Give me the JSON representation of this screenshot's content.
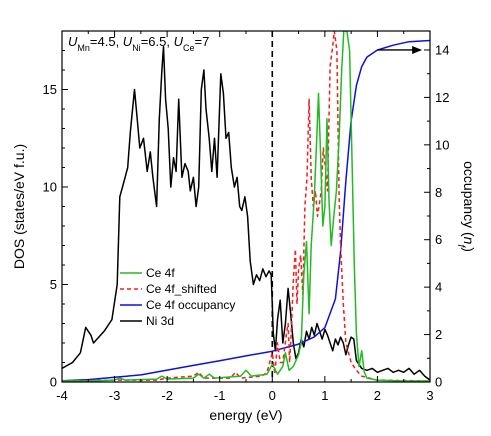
{
  "chart_data": {
    "type": "line",
    "annotation": {
      "parts": [
        {
          "text": "U",
          "style": "italic"
        },
        {
          "text": "Mn",
          "style": "sub"
        },
        {
          "text": "=4.5, ",
          "style": "normal"
        },
        {
          "text": "U",
          "style": "italic"
        },
        {
          "text": "Ni",
          "style": "sub"
        },
        {
          "text": "=6.5, ",
          "style": "normal"
        },
        {
          "text": "U",
          "style": "italic"
        },
        {
          "text": "Ce",
          "style": "sub"
        },
        {
          "text": "=7",
          "style": "normal"
        }
      ]
    },
    "xlabel": "energy (eV)",
    "ylabel": "DOS (states/eV f.u.)",
    "y2label": {
      "parts": [
        {
          "text": "occupancy (",
          "style": "normal"
        },
        {
          "text": "n",
          "style": "italic"
        },
        {
          "text": "f",
          "style": "italic-sub"
        },
        {
          "text": ")",
          "style": "normal"
        }
      ]
    },
    "xlim": [
      -4,
      3
    ],
    "ylim": [
      0,
      18
    ],
    "y2lim": [
      0,
      14.8
    ],
    "xticks": [
      -4,
      -3,
      -2,
      -1,
      0,
      1,
      2,
      3
    ],
    "yticks": [
      0,
      5,
      10,
      15
    ],
    "y2ticks": [
      0,
      2,
      4,
      6,
      8,
      10,
      12,
      14
    ],
    "fermi_level": 0,
    "arrow": {
      "from": [
        2.0,
        14.0
      ],
      "to": [
        2.85,
        14.0
      ],
      "axis": "y2"
    },
    "legend": {
      "position": "lower-left-center"
    },
    "colors": {
      "ce4f": "#22bb22",
      "shifted": "#ee2020",
      "occupancy": "#1010dd",
      "ni3d": "#000000"
    },
    "series": [
      {
        "name": "Ce 4f",
        "axis": "y",
        "color": "#22bb22",
        "style": "solid",
        "points": [
          [
            -4,
            0.05
          ],
          [
            -3.5,
            0.05
          ],
          [
            -3,
            0.1
          ],
          [
            -2.9,
            0.2
          ],
          [
            -2.8,
            0.1
          ],
          [
            -2.2,
            0.15
          ],
          [
            -2.1,
            0.3
          ],
          [
            -2.0,
            0.15
          ],
          [
            -1.5,
            0.2
          ],
          [
            -1.4,
            0.4
          ],
          [
            -1.3,
            0.2
          ],
          [
            -1.2,
            0.4
          ],
          [
            -1.1,
            0.2
          ],
          [
            -0.6,
            0.3
          ],
          [
            -0.5,
            0.6
          ],
          [
            -0.4,
            0.3
          ],
          [
            -0.1,
            0.4
          ],
          [
            0.0,
            0.9
          ],
          [
            0.1,
            0.4
          ],
          [
            0.2,
            0.8
          ],
          [
            0.25,
            1.5
          ],
          [
            0.32,
            0.6
          ],
          [
            0.4,
            0.8
          ],
          [
            0.5,
            1.4
          ],
          [
            0.55,
            2.0
          ],
          [
            0.6,
            5.5
          ],
          [
            0.65,
            7.2
          ],
          [
            0.7,
            3.5
          ],
          [
            0.74,
            7.0
          ],
          [
            0.8,
            9.5
          ],
          [
            0.85,
            12.8
          ],
          [
            0.88,
            14.8
          ],
          [
            0.92,
            11.5
          ],
          [
            0.96,
            8.0
          ],
          [
            1.0,
            9.0
          ],
          [
            1.04,
            13.5
          ],
          [
            1.08,
            9.2
          ],
          [
            1.12,
            7.0
          ],
          [
            1.17,
            8.5
          ],
          [
            1.22,
            9.8
          ],
          [
            1.27,
            12.5
          ],
          [
            1.32,
            16.0
          ],
          [
            1.36,
            18.0
          ],
          [
            1.42,
            18.0
          ],
          [
            1.47,
            17.0
          ],
          [
            1.52,
            11.0
          ],
          [
            1.56,
            6.0
          ],
          [
            1.6,
            2.5
          ],
          [
            1.65,
            0.8
          ],
          [
            1.7,
            1.6
          ],
          [
            1.75,
            0.5
          ],
          [
            1.8,
            0.2
          ],
          [
            2.0,
            0.1
          ],
          [
            2.5,
            0.05
          ],
          [
            3.0,
            0.05
          ]
        ]
      },
      {
        "name": "Ce 4f_shifted",
        "axis": "y",
        "color": "#ee2020",
        "style": "dashed",
        "points": [
          [
            -4,
            0.05
          ],
          [
            -3.0,
            0.1
          ],
          [
            -2.2,
            0.1
          ],
          [
            -2.0,
            0.2
          ],
          [
            -1.5,
            0.3
          ],
          [
            -1.4,
            0.5
          ],
          [
            -1.3,
            0.2
          ],
          [
            -0.8,
            0.2
          ],
          [
            -0.7,
            0.5
          ],
          [
            -0.6,
            0.2
          ],
          [
            -0.2,
            0.3
          ],
          [
            -0.1,
            0.5
          ],
          [
            0.0,
            1.5
          ],
          [
            0.05,
            0.4
          ],
          [
            0.1,
            2.0
          ],
          [
            0.15,
            1.0
          ],
          [
            0.2,
            1.0
          ],
          [
            0.27,
            2.5
          ],
          [
            0.3,
            3.0
          ],
          [
            0.33,
            1.0
          ],
          [
            0.36,
            2.5
          ],
          [
            0.4,
            5.2
          ],
          [
            0.44,
            6.8
          ],
          [
            0.47,
            4.0
          ],
          [
            0.5,
            5.8
          ],
          [
            0.54,
            6.5
          ],
          [
            0.58,
            4.5
          ],
          [
            0.62,
            9.0
          ],
          [
            0.66,
            10.5
          ],
          [
            0.7,
            14.5
          ],
          [
            0.74,
            10.5
          ],
          [
            0.78,
            9.0
          ],
          [
            0.82,
            9.8
          ],
          [
            0.86,
            8.5
          ],
          [
            0.9,
            9.2
          ],
          [
            0.93,
            9.8
          ],
          [
            0.97,
            12.0
          ],
          [
            1.01,
            11.0
          ],
          [
            1.05,
            9.8
          ],
          [
            1.1,
            16.2
          ],
          [
            1.14,
            17.0
          ],
          [
            1.18,
            18.0
          ],
          [
            1.23,
            17.0
          ],
          [
            1.27,
            9.5
          ],
          [
            1.3,
            7.0
          ],
          [
            1.35,
            4.0
          ],
          [
            1.4,
            2.0
          ],
          [
            1.5,
            1.0
          ],
          [
            1.6,
            0.6
          ],
          [
            1.7,
            0.3
          ],
          [
            2.0,
            0.1
          ],
          [
            3.0,
            0.05
          ]
        ]
      },
      {
        "name": "Ce 4f occupancy",
        "axis": "y2",
        "color": "#1010dd",
        "style": "solid",
        "points": [
          [
            -4,
            0.05
          ],
          [
            -3.5,
            0.1
          ],
          [
            -3.0,
            0.2
          ],
          [
            -2.5,
            0.3
          ],
          [
            -2.0,
            0.5
          ],
          [
            -1.5,
            0.7
          ],
          [
            -1.0,
            0.9
          ],
          [
            -0.5,
            1.1
          ],
          [
            0.0,
            1.3
          ],
          [
            0.5,
            1.6
          ],
          [
            0.8,
            1.9
          ],
          [
            1.0,
            2.3
          ],
          [
            1.2,
            3.5
          ],
          [
            1.3,
            5.5
          ],
          [
            1.4,
            8.5
          ],
          [
            1.5,
            11.0
          ],
          [
            1.6,
            12.5
          ],
          [
            1.7,
            13.3
          ],
          [
            1.8,
            13.7
          ],
          [
            2.0,
            14.0
          ],
          [
            2.3,
            14.2
          ],
          [
            2.6,
            14.35
          ],
          [
            3.0,
            14.4
          ]
        ]
      },
      {
        "name": "Ni 3d",
        "axis": "y",
        "color": "#000000",
        "style": "solid",
        "points": [
          [
            -4,
            0.7
          ],
          [
            -3.8,
            1.0
          ],
          [
            -3.65,
            1.5
          ],
          [
            -3.55,
            2.8
          ],
          [
            -3.45,
            2.4
          ],
          [
            -3.4,
            2.0
          ],
          [
            -3.3,
            2.3
          ],
          [
            -3.2,
            2.6
          ],
          [
            -3.1,
            3.0
          ],
          [
            -3.05,
            3.2
          ],
          [
            -2.95,
            5.0
          ],
          [
            -2.9,
            9.5
          ],
          [
            -2.85,
            10.0
          ],
          [
            -2.8,
            10.5
          ],
          [
            -2.75,
            11.0
          ],
          [
            -2.7,
            12.8
          ],
          [
            -2.62,
            15.0
          ],
          [
            -2.57,
            13.5
          ],
          [
            -2.52,
            12.0
          ],
          [
            -2.45,
            12.5
          ],
          [
            -2.38,
            10.8
          ],
          [
            -2.32,
            11.8
          ],
          [
            -2.27,
            10.5
          ],
          [
            -2.2,
            9.0
          ],
          [
            -2.15,
            13.5
          ],
          [
            -2.1,
            16.0
          ],
          [
            -2.07,
            17.2
          ],
          [
            -2.03,
            14.5
          ],
          [
            -1.98,
            13.0
          ],
          [
            -1.93,
            10.0
          ],
          [
            -1.88,
            11.5
          ],
          [
            -1.83,
            10.8
          ],
          [
            -1.78,
            14.5
          ],
          [
            -1.72,
            10.5
          ],
          [
            -1.66,
            11.2
          ],
          [
            -1.6,
            10.8
          ],
          [
            -1.56,
            9.8
          ],
          [
            -1.5,
            10.5
          ],
          [
            -1.45,
            9.0
          ],
          [
            -1.4,
            10.0
          ],
          [
            -1.35,
            15.0
          ],
          [
            -1.3,
            16.0
          ],
          [
            -1.26,
            14.0
          ],
          [
            -1.2,
            12.5
          ],
          [
            -1.15,
            10.8
          ],
          [
            -1.1,
            12.5
          ],
          [
            -1.05,
            10.5
          ],
          [
            -0.98,
            15.8
          ],
          [
            -0.93,
            14.8
          ],
          [
            -0.88,
            12.5
          ],
          [
            -0.83,
            12.8
          ],
          [
            -0.78,
            11.0
          ],
          [
            -0.72,
            10.0
          ],
          [
            -0.67,
            10.5
          ],
          [
            -0.62,
            9.0
          ],
          [
            -0.58,
            8.8
          ],
          [
            -0.52,
            9.5
          ],
          [
            -0.47,
            8.5
          ],
          [
            -0.42,
            6.2
          ],
          [
            -0.36,
            5.0
          ],
          [
            -0.3,
            5.5
          ],
          [
            -0.24,
            5.2
          ],
          [
            -0.18,
            5.8
          ],
          [
            -0.12,
            5.4
          ],
          [
            -0.06,
            5.7
          ],
          [
            -0.02,
            5.5
          ],
          [
            0.02,
            2.5
          ],
          [
            0.06,
            1.6
          ],
          [
            0.1,
            3.2
          ],
          [
            0.15,
            4.2
          ],
          [
            0.2,
            2.0
          ],
          [
            0.25,
            3.0
          ],
          [
            0.3,
            4.8
          ],
          [
            0.35,
            3.5
          ],
          [
            0.4,
            2.0
          ],
          [
            0.45,
            1.2
          ],
          [
            0.5,
            1.5
          ],
          [
            0.55,
            2.2
          ],
          [
            0.6,
            1.8
          ],
          [
            0.65,
            2.6
          ],
          [
            0.7,
            2.2
          ],
          [
            0.75,
            2.8
          ],
          [
            0.8,
            2.4
          ],
          [
            0.85,
            3.0
          ],
          [
            0.9,
            2.6
          ],
          [
            0.95,
            2.2
          ],
          [
            1.0,
            2.7
          ],
          [
            1.05,
            2.4
          ],
          [
            1.1,
            2.0
          ],
          [
            1.15,
            1.6
          ],
          [
            1.2,
            2.2
          ],
          [
            1.25,
            1.9
          ],
          [
            1.3,
            2.3
          ],
          [
            1.35,
            2.0
          ],
          [
            1.4,
            1.4
          ],
          [
            1.45,
            1.9
          ],
          [
            1.5,
            2.3
          ],
          [
            1.55,
            2.2
          ],
          [
            1.6,
            1.1
          ],
          [
            1.7,
            0.7
          ],
          [
            1.8,
            0.6
          ],
          [
            1.9,
            0.7
          ],
          [
            2.0,
            0.5
          ],
          [
            2.1,
            0.6
          ],
          [
            2.2,
            0.7
          ],
          [
            2.3,
            0.5
          ],
          [
            2.4,
            0.6
          ],
          [
            2.5,
            0.5
          ],
          [
            2.6,
            0.7
          ],
          [
            2.7,
            0.4
          ],
          [
            2.8,
            0.6
          ],
          [
            2.9,
            0.3
          ],
          [
            3.0,
            0.1
          ]
        ]
      }
    ]
  }
}
